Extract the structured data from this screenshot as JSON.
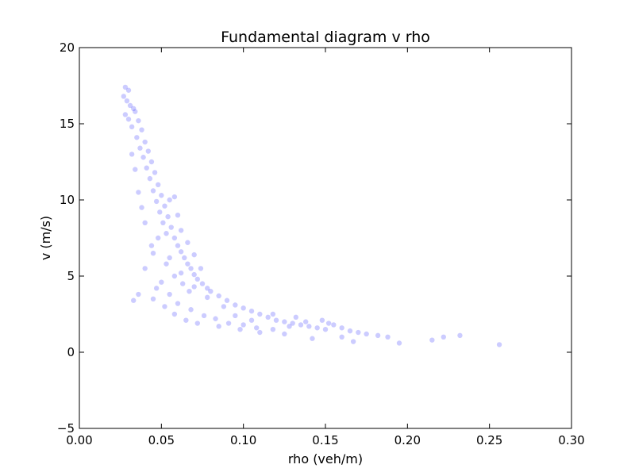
{
  "chart_data": {
    "type": "scatter",
    "title": "Fundamental diagram v rho",
    "xlabel": "rho (veh/m)",
    "ylabel": "v (m/s)",
    "xlim": [
      0.0,
      0.3
    ],
    "ylim": [
      -5,
      20
    ],
    "xticks": [
      "0.00",
      "0.05",
      "0.10",
      "0.15",
      "0.20",
      "0.25",
      "0.30"
    ],
    "yticks": [
      "−5",
      "0",
      "5",
      "10",
      "15",
      "20"
    ],
    "grid": false,
    "legend": "none",
    "marker_color": "#0000ff",
    "marker_opacity": 0.2,
    "series": [
      {
        "points": [
          [
            0.028,
            17.4
          ],
          [
            0.03,
            17.2
          ],
          [
            0.027,
            16.8
          ],
          [
            0.029,
            16.5
          ],
          [
            0.031,
            16.2
          ],
          [
            0.033,
            16.0
          ],
          [
            0.028,
            15.6
          ],
          [
            0.03,
            15.3
          ],
          [
            0.034,
            15.8
          ],
          [
            0.036,
            15.2
          ],
          [
            0.032,
            14.8
          ],
          [
            0.038,
            14.6
          ],
          [
            0.035,
            14.1
          ],
          [
            0.04,
            13.8
          ],
          [
            0.037,
            13.4
          ],
          [
            0.042,
            13.2
          ],
          [
            0.039,
            12.8
          ],
          [
            0.044,
            12.5
          ],
          [
            0.041,
            12.1
          ],
          [
            0.046,
            11.8
          ],
          [
            0.043,
            11.4
          ],
          [
            0.048,
            11.0
          ],
          [
            0.045,
            10.6
          ],
          [
            0.05,
            10.3
          ],
          [
            0.047,
            9.9
          ],
          [
            0.052,
            9.6
          ],
          [
            0.049,
            9.2
          ],
          [
            0.054,
            8.9
          ],
          [
            0.051,
            8.5
          ],
          [
            0.056,
            8.2
          ],
          [
            0.053,
            7.8
          ],
          [
            0.058,
            7.5
          ],
          [
            0.06,
            7.0
          ],
          [
            0.062,
            6.6
          ],
          [
            0.064,
            6.2
          ],
          [
            0.066,
            5.8
          ],
          [
            0.068,
            5.5
          ],
          [
            0.07,
            5.1
          ],
          [
            0.072,
            4.8
          ],
          [
            0.075,
            4.5
          ],
          [
            0.078,
            4.2
          ],
          [
            0.08,
            4.0
          ],
          [
            0.085,
            3.7
          ],
          [
            0.09,
            3.4
          ],
          [
            0.095,
            3.1
          ],
          [
            0.1,
            2.9
          ],
          [
            0.105,
            2.7
          ],
          [
            0.11,
            2.5
          ],
          [
            0.115,
            2.3
          ],
          [
            0.12,
            2.1
          ],
          [
            0.125,
            2.0
          ],
          [
            0.13,
            1.9
          ],
          [
            0.135,
            1.8
          ],
          [
            0.14,
            1.7
          ],
          [
            0.145,
            1.6
          ],
          [
            0.15,
            1.5
          ],
          [
            0.155,
            1.8
          ],
          [
            0.16,
            1.6
          ],
          [
            0.165,
            1.4
          ],
          [
            0.17,
            1.3
          ],
          [
            0.175,
            1.2
          ],
          [
            0.182,
            1.1
          ],
          [
            0.188,
            1.0
          ],
          [
            0.195,
            0.6
          ],
          [
            0.215,
            0.8
          ],
          [
            0.222,
            1.0
          ],
          [
            0.232,
            1.1
          ],
          [
            0.256,
            0.5
          ],
          [
            0.033,
            3.4
          ],
          [
            0.036,
            3.8
          ],
          [
            0.045,
            3.5
          ],
          [
            0.052,
            3.0
          ],
          [
            0.058,
            2.5
          ],
          [
            0.065,
            2.1
          ],
          [
            0.072,
            1.9
          ],
          [
            0.085,
            1.7
          ],
          [
            0.098,
            1.5
          ],
          [
            0.11,
            1.3
          ],
          [
            0.125,
            1.2
          ],
          [
            0.142,
            0.9
          ],
          [
            0.16,
            1.0
          ],
          [
            0.167,
            0.7
          ],
          [
            0.04,
            5.5
          ],
          [
            0.045,
            6.5
          ],
          [
            0.048,
            7.5
          ],
          [
            0.055,
            6.2
          ],
          [
            0.062,
            5.2
          ],
          [
            0.07,
            4.3
          ],
          [
            0.078,
            3.6
          ],
          [
            0.088,
            3.0
          ],
          [
            0.095,
            2.4
          ],
          [
            0.105,
            2.1
          ],
          [
            0.118,
            2.5
          ],
          [
            0.132,
            2.3
          ],
          [
            0.036,
            10.5
          ],
          [
            0.038,
            9.5
          ],
          [
            0.034,
            12.0
          ],
          [
            0.032,
            13.0
          ],
          [
            0.04,
            8.5
          ],
          [
            0.044,
            7.0
          ],
          [
            0.055,
            10.0
          ],
          [
            0.06,
            9.0
          ],
          [
            0.058,
            10.2
          ],
          [
            0.062,
            8.0
          ],
          [
            0.066,
            7.2
          ],
          [
            0.07,
            6.4
          ],
          [
            0.074,
            5.5
          ],
          [
            0.067,
            4.0
          ],
          [
            0.063,
            4.5
          ],
          [
            0.058,
            5.0
          ],
          [
            0.053,
            5.8
          ],
          [
            0.05,
            4.6
          ],
          [
            0.047,
            4.2
          ],
          [
            0.055,
            3.8
          ],
          [
            0.06,
            3.2
          ],
          [
            0.068,
            2.8
          ],
          [
            0.076,
            2.4
          ],
          [
            0.083,
            2.2
          ],
          [
            0.091,
            1.9
          ],
          [
            0.1,
            1.8
          ],
          [
            0.108,
            1.6
          ],
          [
            0.118,
            1.5
          ],
          [
            0.128,
            1.7
          ],
          [
            0.138,
            2.0
          ],
          [
            0.148,
            2.1
          ],
          [
            0.152,
            1.9
          ]
        ]
      }
    ]
  }
}
